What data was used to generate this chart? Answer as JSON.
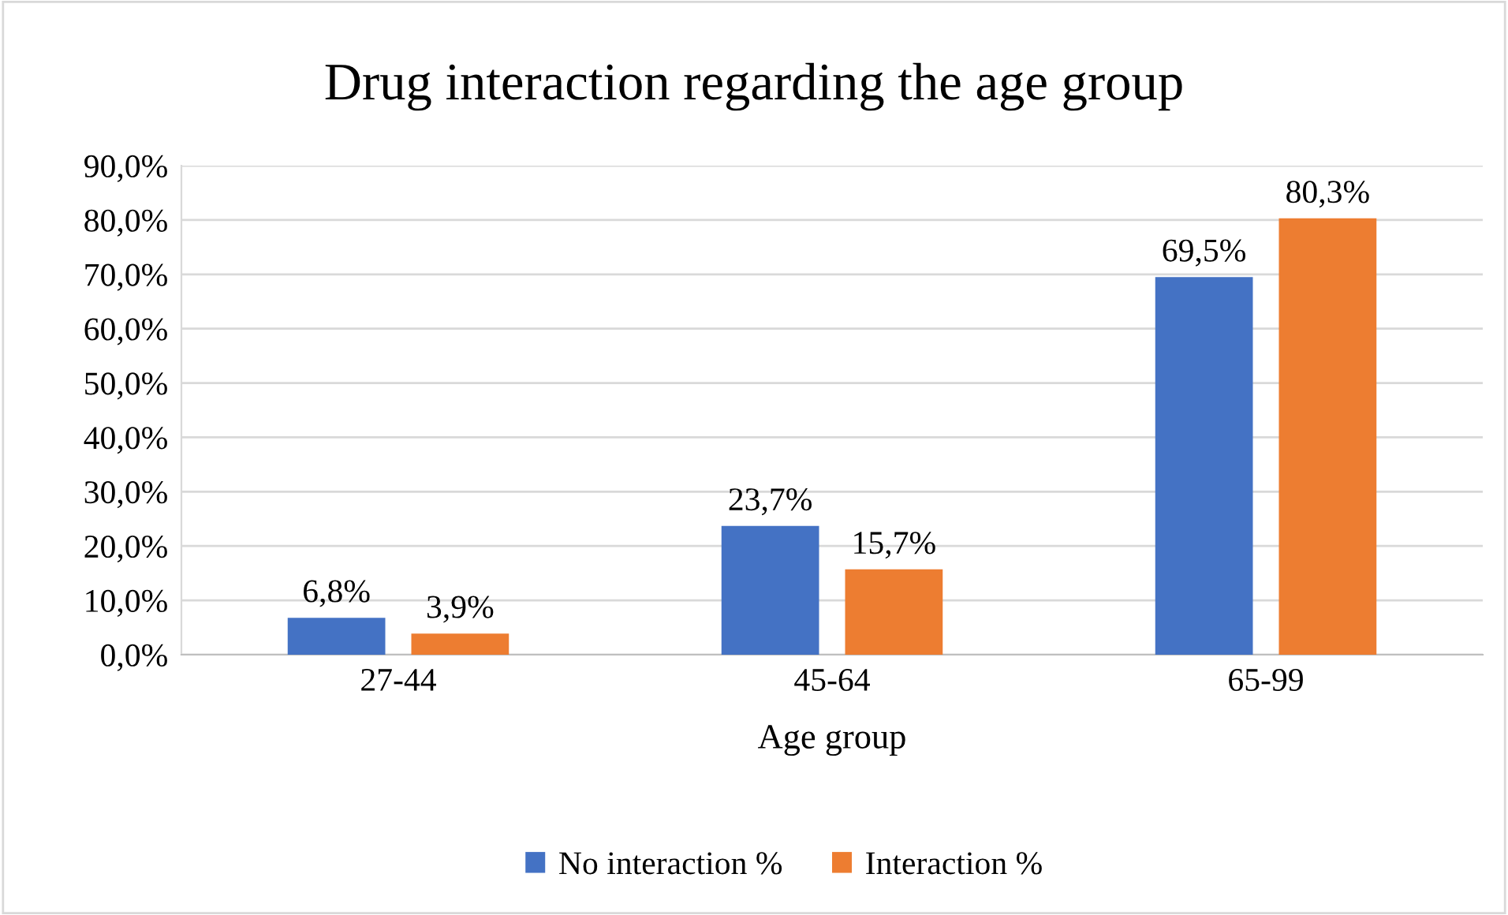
{
  "chart_data": {
    "type": "bar",
    "title": "Drug interaction regarding the age group",
    "xlabel": "Age group",
    "categories": [
      "27-44",
      "45-64",
      "65-99"
    ],
    "series": [
      {
        "name": "No interaction %",
        "color": "#4472c4",
        "values": [
          6.8,
          23.7,
          69.5
        ],
        "value_labels": [
          "6,8%",
          "23,7%",
          "69,5%"
        ]
      },
      {
        "name": "Interaction %",
        "color": "#ed7d31",
        "values": [
          3.9,
          15.7,
          80.3
        ],
        "value_labels": [
          "3,9%",
          "15,7%",
          "80,3%"
        ]
      }
    ],
    "ylim": [
      0,
      90
    ],
    "yticks": [
      {
        "value": 0,
        "label": "0,0%"
      },
      {
        "value": 10,
        "label": "10,0%"
      },
      {
        "value": 20,
        "label": "20,0%"
      },
      {
        "value": 30,
        "label": "30,0%"
      },
      {
        "value": 40,
        "label": "40,0%"
      },
      {
        "value": 50,
        "label": "50,0%"
      },
      {
        "value": 60,
        "label": "60,0%"
      },
      {
        "value": 70,
        "label": "70,0%"
      },
      {
        "value": 80,
        "label": "80,0%"
      },
      {
        "value": 90,
        "label": "90,0%"
      }
    ],
    "grid": "y",
    "legend": "bottom"
  }
}
